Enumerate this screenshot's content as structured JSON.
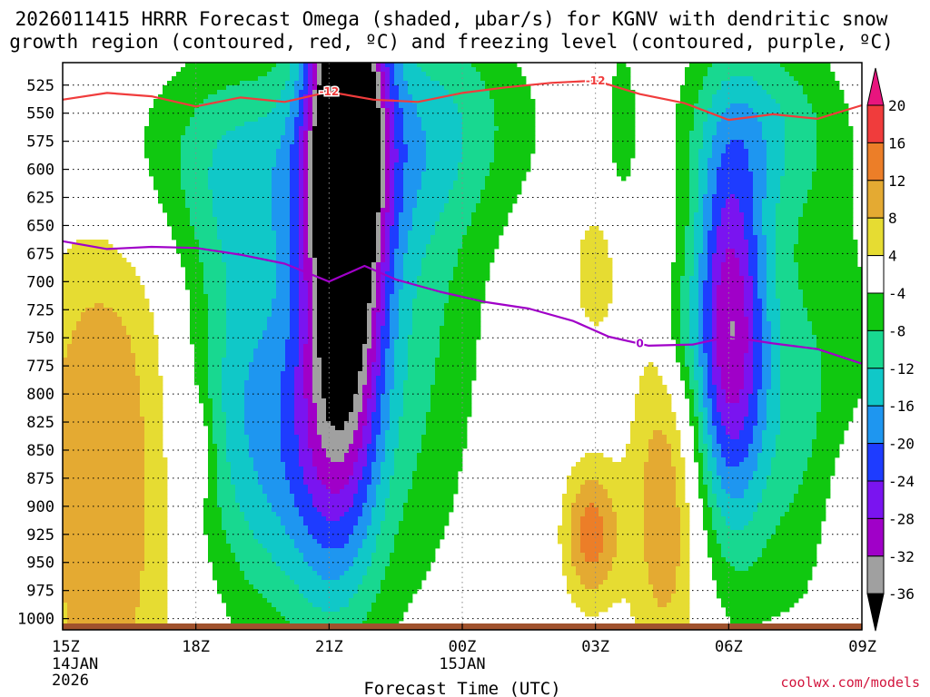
{
  "chart_data": {
    "type": "heatmap",
    "title_line1": "2026011415 HRRR Forecast Omega (shaded, µbar/s) for KGNV with dendritic snow",
    "title_line2": "growth region (contoured, red, ºC) and freezing level (contoured, purple, ºC)",
    "xlabel": "Forecast Time (UTC)",
    "credit": "coolwx.com/models",
    "credit_color": "#d2143c",
    "x_range_hours": [
      0,
      18
    ],
    "y_range_hPa": [
      1010,
      505
    ],
    "x_ticks": [
      {
        "hour": 0,
        "label": "15Z",
        "sub1": "14JAN",
        "sub2": "2026"
      },
      {
        "hour": 3,
        "label": "18Z",
        "sub1": "",
        "sub2": ""
      },
      {
        "hour": 6,
        "label": "21Z",
        "sub1": "",
        "sub2": ""
      },
      {
        "hour": 9,
        "label": "00Z",
        "sub1": "15JAN",
        "sub2": ""
      },
      {
        "hour": 12,
        "label": "03Z",
        "sub1": "",
        "sub2": ""
      },
      {
        "hour": 15,
        "label": "06Z",
        "sub1": "",
        "sub2": ""
      },
      {
        "hour": 18,
        "label": "09Z",
        "sub1": "",
        "sub2": ""
      }
    ],
    "y_ticks": [
      {
        "p": 525,
        "label": "525"
      },
      {
        "p": 550,
        "label": "550"
      },
      {
        "p": 575,
        "label": "575"
      },
      {
        "p": 600,
        "label": "600"
      },
      {
        "p": 625,
        "label": "625"
      },
      {
        "p": 650,
        "label": "650"
      },
      {
        "p": 675,
        "label": "675"
      },
      {
        "p": 700,
        "label": "700"
      },
      {
        "p": 725,
        "label": "725"
      },
      {
        "p": 750,
        "label": "750"
      },
      {
        "p": 775,
        "label": "775"
      },
      {
        "p": 800,
        "label": "800"
      },
      {
        "p": 825,
        "label": "825"
      },
      {
        "p": 850,
        "label": "850"
      },
      {
        "p": 875,
        "label": "875"
      },
      {
        "p": 900,
        "label": "900"
      },
      {
        "p": 925,
        "label": "925"
      },
      {
        "p": 950,
        "label": "950"
      },
      {
        "p": 975,
        "label": "975"
      },
      {
        "p": 1000,
        "label": "1000"
      }
    ],
    "colorbar": {
      "labels": [
        {
          "value": 20,
          "label": "20"
        },
        {
          "value": 16,
          "label": "16"
        },
        {
          "value": 12,
          "label": "12"
        },
        {
          "value": 8,
          "label": "8"
        },
        {
          "value": 4,
          "label": "4"
        },
        {
          "value": -4,
          "label": "-4"
        },
        {
          "value": -8,
          "label": "-8"
        },
        {
          "value": -12,
          "label": "-12"
        },
        {
          "value": -16,
          "label": "-16"
        },
        {
          "value": -20,
          "label": "-20"
        },
        {
          "value": -24,
          "label": "-24"
        },
        {
          "value": -28,
          "label": "-28"
        },
        {
          "value": -32,
          "label": "-32"
        },
        {
          "value": -36,
          "label": "-36"
        }
      ],
      "bins": [
        {
          "lo": 20,
          "hi": 99,
          "color": "#e8157e"
        },
        {
          "lo": 16,
          "hi": 20,
          "color": "#f03c3c"
        },
        {
          "lo": 12,
          "hi": 16,
          "color": "#ec7e28"
        },
        {
          "lo": 8,
          "hi": 12,
          "color": "#e4aa32"
        },
        {
          "lo": 4,
          "hi": 8,
          "color": "#e6dc32"
        },
        {
          "lo": -4,
          "hi": 4,
          "color": "#ffffff"
        },
        {
          "lo": -8,
          "hi": -4,
          "color": "#10c810"
        },
        {
          "lo": -12,
          "hi": -8,
          "color": "#18d890"
        },
        {
          "lo": -16,
          "hi": -12,
          "color": "#10c8c8"
        },
        {
          "lo": -20,
          "hi": -16,
          "color": "#1e96f0"
        },
        {
          "lo": -24,
          "hi": -20,
          "color": "#1e3cff"
        },
        {
          "lo": -28,
          "hi": -24,
          "color": "#7a14f0"
        },
        {
          "lo": -32,
          "hi": -28,
          "color": "#a000c8"
        },
        {
          "lo": -36,
          "hi": -32,
          "color": "#a0a0a0"
        },
        {
          "lo": -99,
          "hi": -36,
          "color": "#000000"
        }
      ]
    },
    "omega_features": [
      {
        "x": 0.9,
        "p": 875,
        "sx": 1.2,
        "sy": 200,
        "amp": 12
      },
      {
        "x": 3.0,
        "p": 850,
        "sx": 0.25,
        "sy": 30,
        "amp": 6
      },
      {
        "x": 4.5,
        "p": 590,
        "sx": 3.0,
        "sy": 70,
        "amp": -10
      },
      {
        "x": 4.0,
        "p": 760,
        "sx": 0.9,
        "sy": 130,
        "amp": -9
      },
      {
        "x": 5.2,
        "p": 860,
        "sx": 1.3,
        "sy": 110,
        "amp": -12
      },
      {
        "x": 6.4,
        "p": 560,
        "sx": 0.6,
        "sy": 180,
        "amp": -44
      },
      {
        "x": 6.0,
        "p": 780,
        "sx": 0.7,
        "sy": 150,
        "amp": -12
      },
      {
        "x": 7.8,
        "p": 700,
        "sx": 1.2,
        "sy": 190,
        "amp": -9
      },
      {
        "x": 9.0,
        "p": 550,
        "sx": 1.4,
        "sy": 60,
        "amp": -5
      },
      {
        "x": 11.9,
        "p": 925,
        "sx": 0.45,
        "sy": 45,
        "amp": 14
      },
      {
        "x": 12.0,
        "p": 690,
        "sx": 0.4,
        "sy": 45,
        "amp": 7
      },
      {
        "x": 13.6,
        "p": 900,
        "sx": 0.6,
        "sy": 110,
        "amp": 12
      },
      {
        "x": 15.0,
        "p": 740,
        "sx": 0.6,
        "sy": 120,
        "amp": -28
      },
      {
        "x": 16.6,
        "p": 810,
        "sx": 1.4,
        "sy": 140,
        "amp": -9
      },
      {
        "x": 15.8,
        "p": 560,
        "sx": 1.2,
        "sy": 60,
        "amp": -10
      },
      {
        "x": 17.8,
        "p": 930,
        "sx": 0.5,
        "sy": 80,
        "amp": 6
      },
      {
        "x": 12.6,
        "p": 560,
        "sx": 0.3,
        "sy": 70,
        "amp": -5
      },
      {
        "x": 13.9,
        "p": 740,
        "sx": 0.3,
        "sy": 40,
        "amp": -5
      }
    ],
    "dendritic_contour": {
      "label": "-12",
      "color": "#f03c3c",
      "label_at_hours": [
        6.0,
        12.0
      ],
      "points": [
        [
          0,
          538
        ],
        [
          1,
          532
        ],
        [
          2,
          535
        ],
        [
          3,
          544
        ],
        [
          4,
          536
        ],
        [
          5,
          540
        ],
        [
          6,
          531
        ],
        [
          7,
          538
        ],
        [
          8,
          540
        ],
        [
          9,
          532
        ],
        [
          10,
          527
        ],
        [
          11,
          523
        ],
        [
          12,
          521
        ],
        [
          13,
          533
        ],
        [
          14,
          541
        ],
        [
          15,
          556
        ],
        [
          16,
          551
        ],
        [
          17,
          555
        ],
        [
          18,
          543
        ]
      ]
    },
    "freezing_contour": {
      "label": "0",
      "color": "#a000c8",
      "label_at_hours": [
        13.0
      ],
      "points": [
        [
          0,
          664
        ],
        [
          1,
          671
        ],
        [
          2,
          669
        ],
        [
          3,
          670
        ],
        [
          4,
          676
        ],
        [
          5,
          684
        ],
        [
          6,
          700
        ],
        [
          6.8,
          686
        ],
        [
          7.5,
          698
        ],
        [
          8.5,
          709
        ],
        [
          9.5,
          718
        ],
        [
          10.5,
          724
        ],
        [
          11.5,
          735
        ],
        [
          12.3,
          749
        ],
        [
          13.2,
          757
        ],
        [
          14.2,
          756
        ],
        [
          15.0,
          749
        ],
        [
          16.0,
          755
        ],
        [
          17.0,
          760
        ],
        [
          18.0,
          773
        ]
      ]
    },
    "terrain_color": "#a0522d"
  }
}
